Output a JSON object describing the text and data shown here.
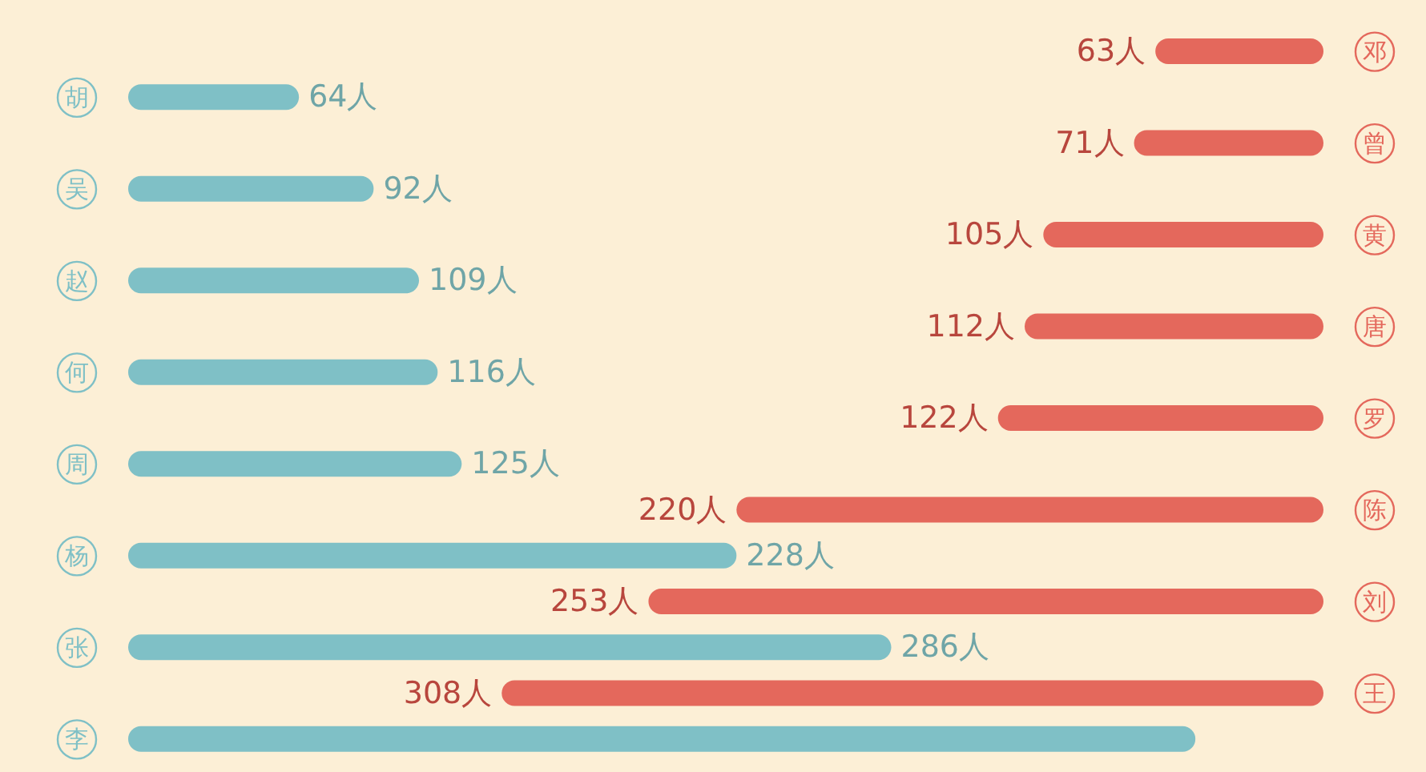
{
  "chart_data": [
    {
      "type": "bar",
      "orientation": "horizontal",
      "categories": [
        "邓",
        "曾",
        "黄",
        "唐",
        "罗",
        "陈",
        "刘",
        "王"
      ],
      "color": "#e4685c",
      "values": [
        63,
        71,
        105,
        112,
        122,
        220,
        253,
        308
      ],
      "value_labels": [
        "63人",
        "71人",
        "105人",
        "112人",
        "122人",
        "220人",
        "253人",
        "308人"
      ]
    },
    {
      "type": "bar",
      "orientation": "horizontal",
      "categories": [
        "胡",
        "吴",
        "赵",
        "何",
        "周",
        "杨",
        "张",
        "李"
      ],
      "color": "#7fc0c6",
      "values": [
        64,
        92,
        109,
        116,
        125,
        228,
        286,
        400
      ],
      "value_labels": [
        "64人",
        "92人",
        "109人",
        "116人",
        "125人",
        "228人",
        "286人",
        null
      ]
    }
  ]
}
